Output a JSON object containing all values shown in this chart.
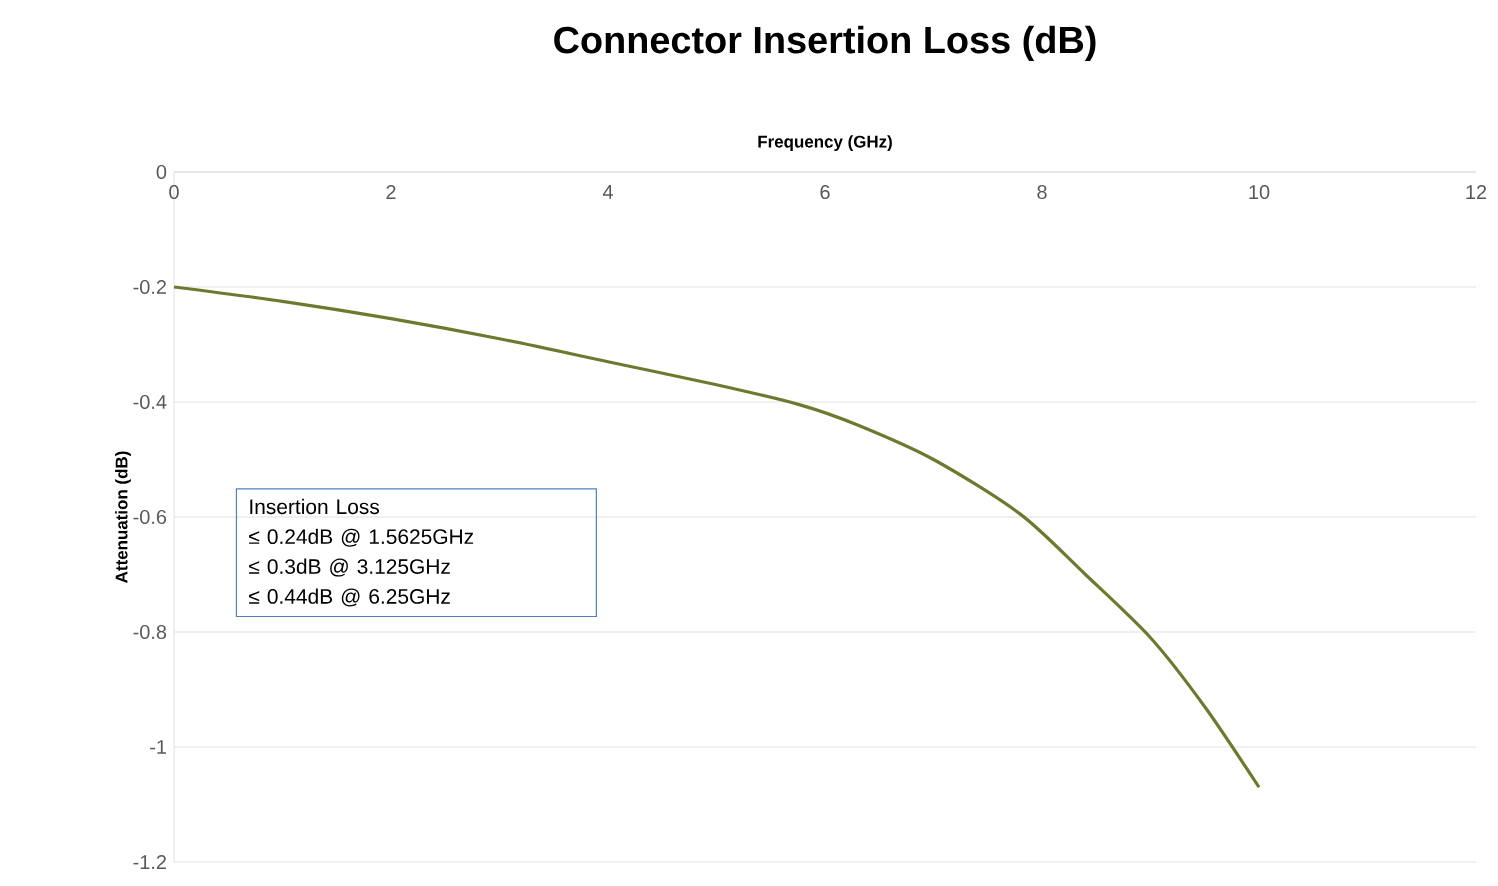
{
  "chart_data": {
    "type": "line",
    "title": "Connector Insertion Loss (dB)",
    "xlabel": "Frequency (GHz)",
    "ylabel": "Attenuation (dB)",
    "x": [
      0,
      1,
      2,
      3,
      4,
      5,
      5.77,
      6.3,
      7,
      7.8,
      8.4,
      9,
      9.5,
      10
    ],
    "series": [
      {
        "color": "#6b7a2e",
        "values": [
          -0.2,
          -0.225,
          -0.255,
          -0.29,
          -0.33,
          -0.37,
          -0.405,
          -0.44,
          -0.5,
          -0.595,
          -0.7,
          -0.81,
          -0.93,
          -1.07
        ]
      }
    ],
    "xlim": [
      0,
      12
    ],
    "xticks": [
      0,
      2,
      4,
      6,
      8,
      10,
      12
    ],
    "ylim": [
      -1.2,
      0
    ],
    "yticks": [
      -1.2,
      -1,
      -0.8,
      -0.6,
      -0.4,
      -0.2,
      0
    ],
    "grid": "y",
    "marker": "none",
    "line_style": "solid",
    "annotations": [
      "Insertion Loss",
      "≤ 0.24dB @ 1.5625GHz",
      "≤ 0.3dB @ 3.125GHz",
      "≤ 0.44dB @ 6.25GHz"
    ]
  }
}
